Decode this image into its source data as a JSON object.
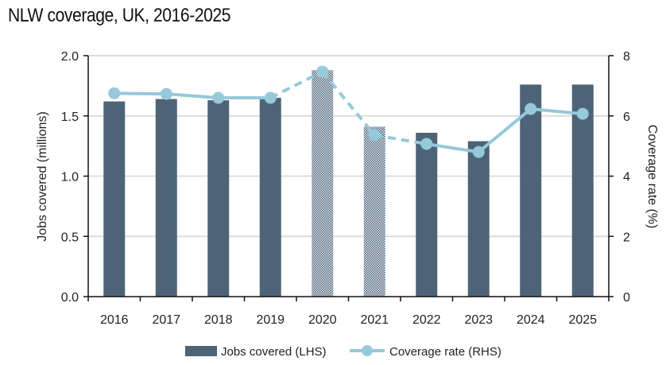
{
  "chart_data": {
    "type": "bar",
    "title": "NLW coverage, UK, 2016-2025",
    "categories": [
      "2016",
      "2017",
      "2018",
      "2019",
      "2020",
      "2021",
      "2022",
      "2023",
      "2024",
      "2025"
    ],
    "ylabel": "Jobs covered (millions)",
    "y2label": "Coverage rate (%)",
    "ylim": [
      0,
      2.0
    ],
    "y2lim": [
      0,
      8
    ],
    "yticks": [
      "0.0",
      "0.5",
      "1.0",
      "1.5",
      "2.0"
    ],
    "y2ticks": [
      "0",
      "2",
      "4",
      "6",
      "8"
    ],
    "grid": true,
    "legend_position": "bottom",
    "series": [
      {
        "name": "Jobs covered (LHS)",
        "type": "bar",
        "axis": "left",
        "color": "#4d6478",
        "values": [
          1.62,
          1.64,
          1.63,
          1.65,
          1.88,
          1.41,
          1.36,
          1.29,
          1.76,
          1.76
        ],
        "hatched_categories": [
          "2020",
          "2021"
        ]
      },
      {
        "name": "Coverage rate (RHS)",
        "type": "line",
        "axis": "right",
        "color": "#96c9da",
        "values": [
          6.75,
          6.73,
          6.6,
          6.6,
          7.47,
          5.36,
          5.07,
          4.8,
          6.23,
          6.07
        ],
        "dashed_between": [
          "2019",
          "2022"
        ]
      }
    ]
  }
}
